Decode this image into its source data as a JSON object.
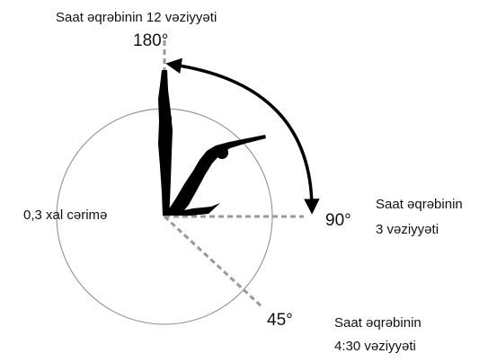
{
  "labels": {
    "top_caption": "Saat əqrəbinin 12 vəziyyəti",
    "angle_180": "180°",
    "angle_90": "90°",
    "angle_45": "45°",
    "penalty": "0,3 xal cərimə",
    "right_caption": [
      "Saat əqrəbinin",
      "3 vəziyyəti"
    ],
    "bottom_caption": [
      "Saat əqrəbinin",
      "4:30 vəziyyəti"
    ]
  }
}
